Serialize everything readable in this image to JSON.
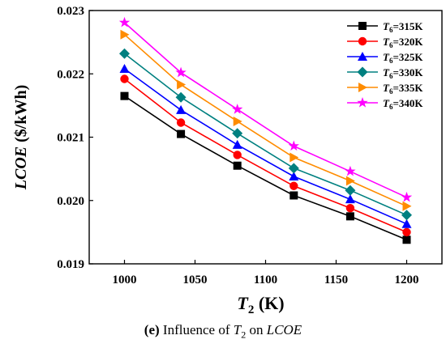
{
  "chart_data": {
    "type": "line",
    "xlabel": "T",
    "xlabel_sub": "2",
    "xlabel_unit": "(K)",
    "ylabel_italic": "LCOE",
    "ylabel_unit": "($/kWh)",
    "x": [
      1000,
      1040,
      1080,
      1120,
      1160,
      1200
    ],
    "xlim": [
      975,
      1225
    ],
    "ylim": [
      0.019,
      0.023
    ],
    "x_ticks": [
      1000,
      1050,
      1100,
      1150,
      1200
    ],
    "x_tick_labels": [
      "1000",
      "1050",
      "1100",
      "1150",
      "1200"
    ],
    "y_ticks": [
      0.019,
      0.02,
      0.021,
      0.022,
      0.023
    ],
    "y_tick_labels": [
      "0.019",
      "0.020",
      "0.021",
      "0.022",
      "0.023"
    ],
    "grid": false,
    "legend_position": "top-right",
    "series": [
      {
        "name_var": "T",
        "name_sub": "6",
        "name_val": "=315K",
        "marker": "square",
        "color": "#000000",
        "values": [
          0.02165,
          0.02105,
          0.02055,
          0.02008,
          0.01975,
          0.01938
        ]
      },
      {
        "name_var": "T",
        "name_sub": "6",
        "name_val": "=320K",
        "marker": "circle",
        "color": "#ff0000",
        "values": [
          0.02192,
          0.02123,
          0.02072,
          0.02023,
          0.01988,
          0.0195
        ]
      },
      {
        "name_var": "T",
        "name_sub": "6",
        "name_val": "=325K",
        "marker": "triangle-up",
        "color": "#0000ff",
        "values": [
          0.02208,
          0.02143,
          0.02088,
          0.02038,
          0.02002,
          0.01963
        ]
      },
      {
        "name_var": "T",
        "name_sub": "6",
        "name_val": "=330K",
        "marker": "diamond",
        "color": "#008080",
        "values": [
          0.02232,
          0.02163,
          0.02106,
          0.02051,
          0.02016,
          0.01977
        ]
      },
      {
        "name_var": "T",
        "name_sub": "6",
        "name_val": "=335K",
        "marker": "triangle-right",
        "color": "#ff8c00",
        "values": [
          0.02262,
          0.02183,
          0.02125,
          0.02068,
          0.02031,
          0.01991
        ]
      },
      {
        "name_var": "T",
        "name_sub": "6",
        "name_val": "=340K",
        "marker": "star",
        "color": "#ff00ff",
        "values": [
          0.02281,
          0.02202,
          0.02144,
          0.02086,
          0.02046,
          0.02005
        ]
      }
    ]
  },
  "caption": {
    "label": "(e)",
    "text_before": " Influence of ",
    "var": "T",
    "sub": "2",
    "text_mid": " on ",
    "target": "LCOE"
  }
}
